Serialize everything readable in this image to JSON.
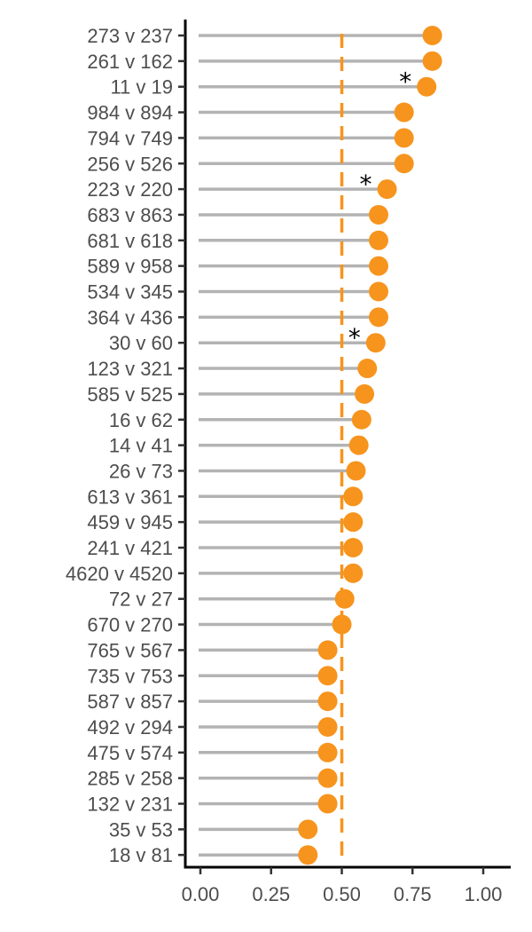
{
  "chart_data": {
    "type": "lollipop",
    "orientation": "horizontal",
    "xlim": [
      -0.05,
      1.1
    ],
    "x_ticks": [
      0.0,
      0.25,
      0.5,
      0.75,
      1.0
    ],
    "x_tick_labels": [
      "0.00",
      "0.25",
      "0.50",
      "0.75",
      "1.00"
    ],
    "reference_line": {
      "value": 0.5,
      "style": "dashed",
      "color": "#f7941d"
    },
    "point_color": "#f7941d",
    "stem_color": "#b3b3b3",
    "categories": [
      {
        "label": "273 v 237",
        "value": 0.82,
        "significant": false
      },
      {
        "label": "261 v 162",
        "value": 0.82,
        "significant": false
      },
      {
        "label": "11 v 19",
        "value": 0.8,
        "significant": true
      },
      {
        "label": "984 v 894",
        "value": 0.72,
        "significant": false
      },
      {
        "label": "794 v 749",
        "value": 0.72,
        "significant": false
      },
      {
        "label": "256 v 526",
        "value": 0.72,
        "significant": false
      },
      {
        "label": "223 v 220",
        "value": 0.66,
        "significant": true
      },
      {
        "label": "683 v 863",
        "value": 0.63,
        "significant": false
      },
      {
        "label": "681 v 618",
        "value": 0.63,
        "significant": false
      },
      {
        "label": "589 v 958",
        "value": 0.63,
        "significant": false
      },
      {
        "label": "534 v 345",
        "value": 0.63,
        "significant": false
      },
      {
        "label": "364 v 436",
        "value": 0.63,
        "significant": false
      },
      {
        "label": "30 v 60",
        "value": 0.62,
        "significant": true
      },
      {
        "label": "123 v 321",
        "value": 0.59,
        "significant": false
      },
      {
        "label": "585 v 525",
        "value": 0.58,
        "significant": false
      },
      {
        "label": "16 v 62",
        "value": 0.57,
        "significant": false
      },
      {
        "label": "14 v 41",
        "value": 0.56,
        "significant": false
      },
      {
        "label": "26 v 73",
        "value": 0.55,
        "significant": false
      },
      {
        "label": "613 v 361",
        "value": 0.54,
        "significant": false
      },
      {
        "label": "459 v 945",
        "value": 0.54,
        "significant": false
      },
      {
        "label": "241 v 421",
        "value": 0.54,
        "significant": false
      },
      {
        "label": "4620 v 4520",
        "value": 0.54,
        "significant": false
      },
      {
        "label": "72 v 27",
        "value": 0.51,
        "significant": false
      },
      {
        "label": "670 v 270",
        "value": 0.5,
        "significant": false
      },
      {
        "label": "765 v 567",
        "value": 0.45,
        "significant": false
      },
      {
        "label": "735 v 753",
        "value": 0.45,
        "significant": false
      },
      {
        "label": "587 v 857",
        "value": 0.45,
        "significant": false
      },
      {
        "label": "492 v 294",
        "value": 0.45,
        "significant": false
      },
      {
        "label": "475 v 574",
        "value": 0.45,
        "significant": false
      },
      {
        "label": "285 v 258",
        "value": 0.45,
        "significant": false
      },
      {
        "label": "132 v 231",
        "value": 0.45,
        "significant": false
      },
      {
        "label": "35 v 53",
        "value": 0.38,
        "significant": false
      },
      {
        "label": "18 v 81",
        "value": 0.38,
        "significant": false
      }
    ],
    "significance_marker": "*"
  }
}
